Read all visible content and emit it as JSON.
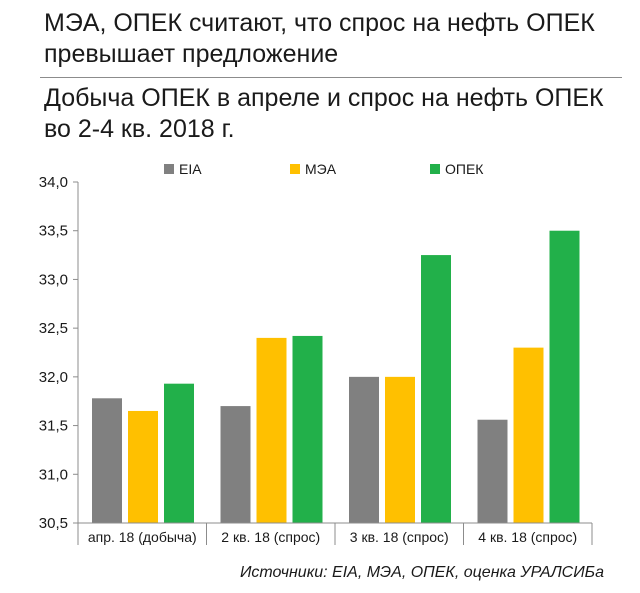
{
  "headline": "МЭА, ОПЕК считают, что спрос на нефть ОПЕК превышает предложение",
  "colors": {
    "EIA": "#808080",
    "MEA": "#ffc000",
    "OPEC": "#22b04a"
  },
  "chart_data": {
    "type": "bar",
    "title": "Добыча ОПЕК в апреле и спрос на нефть ОПЕК во 2-4 кв. 2018 г.",
    "categories": [
      "апр. 18 (добыча)",
      "2 кв. 18 (спрос)",
      "3 кв. 18 (спрос)",
      "4 кв. 18 (спрос)"
    ],
    "series": [
      {
        "name": "EIA",
        "values": [
          31.78,
          31.7,
          32.0,
          31.56
        ]
      },
      {
        "name": "МЭА",
        "values": [
          31.65,
          32.4,
          32.0,
          32.3
        ]
      },
      {
        "name": "ОПЕК",
        "values": [
          31.93,
          32.42,
          33.25,
          33.5
        ]
      }
    ],
    "ylim": [
      30.5,
      34.0
    ],
    "yticks": [
      "30,5",
      "31,0",
      "31,5",
      "32,0",
      "32,5",
      "33,0",
      "33,5",
      "34,0"
    ],
    "ytick_values": [
      30.5,
      31.0,
      31.5,
      32.0,
      32.5,
      33.0,
      33.5,
      34.0
    ],
    "grid": false,
    "legend_position": "top"
  },
  "source_note": "Источники: EIA, МЭА, ОПЕК, оценка УРАЛСИБа"
}
